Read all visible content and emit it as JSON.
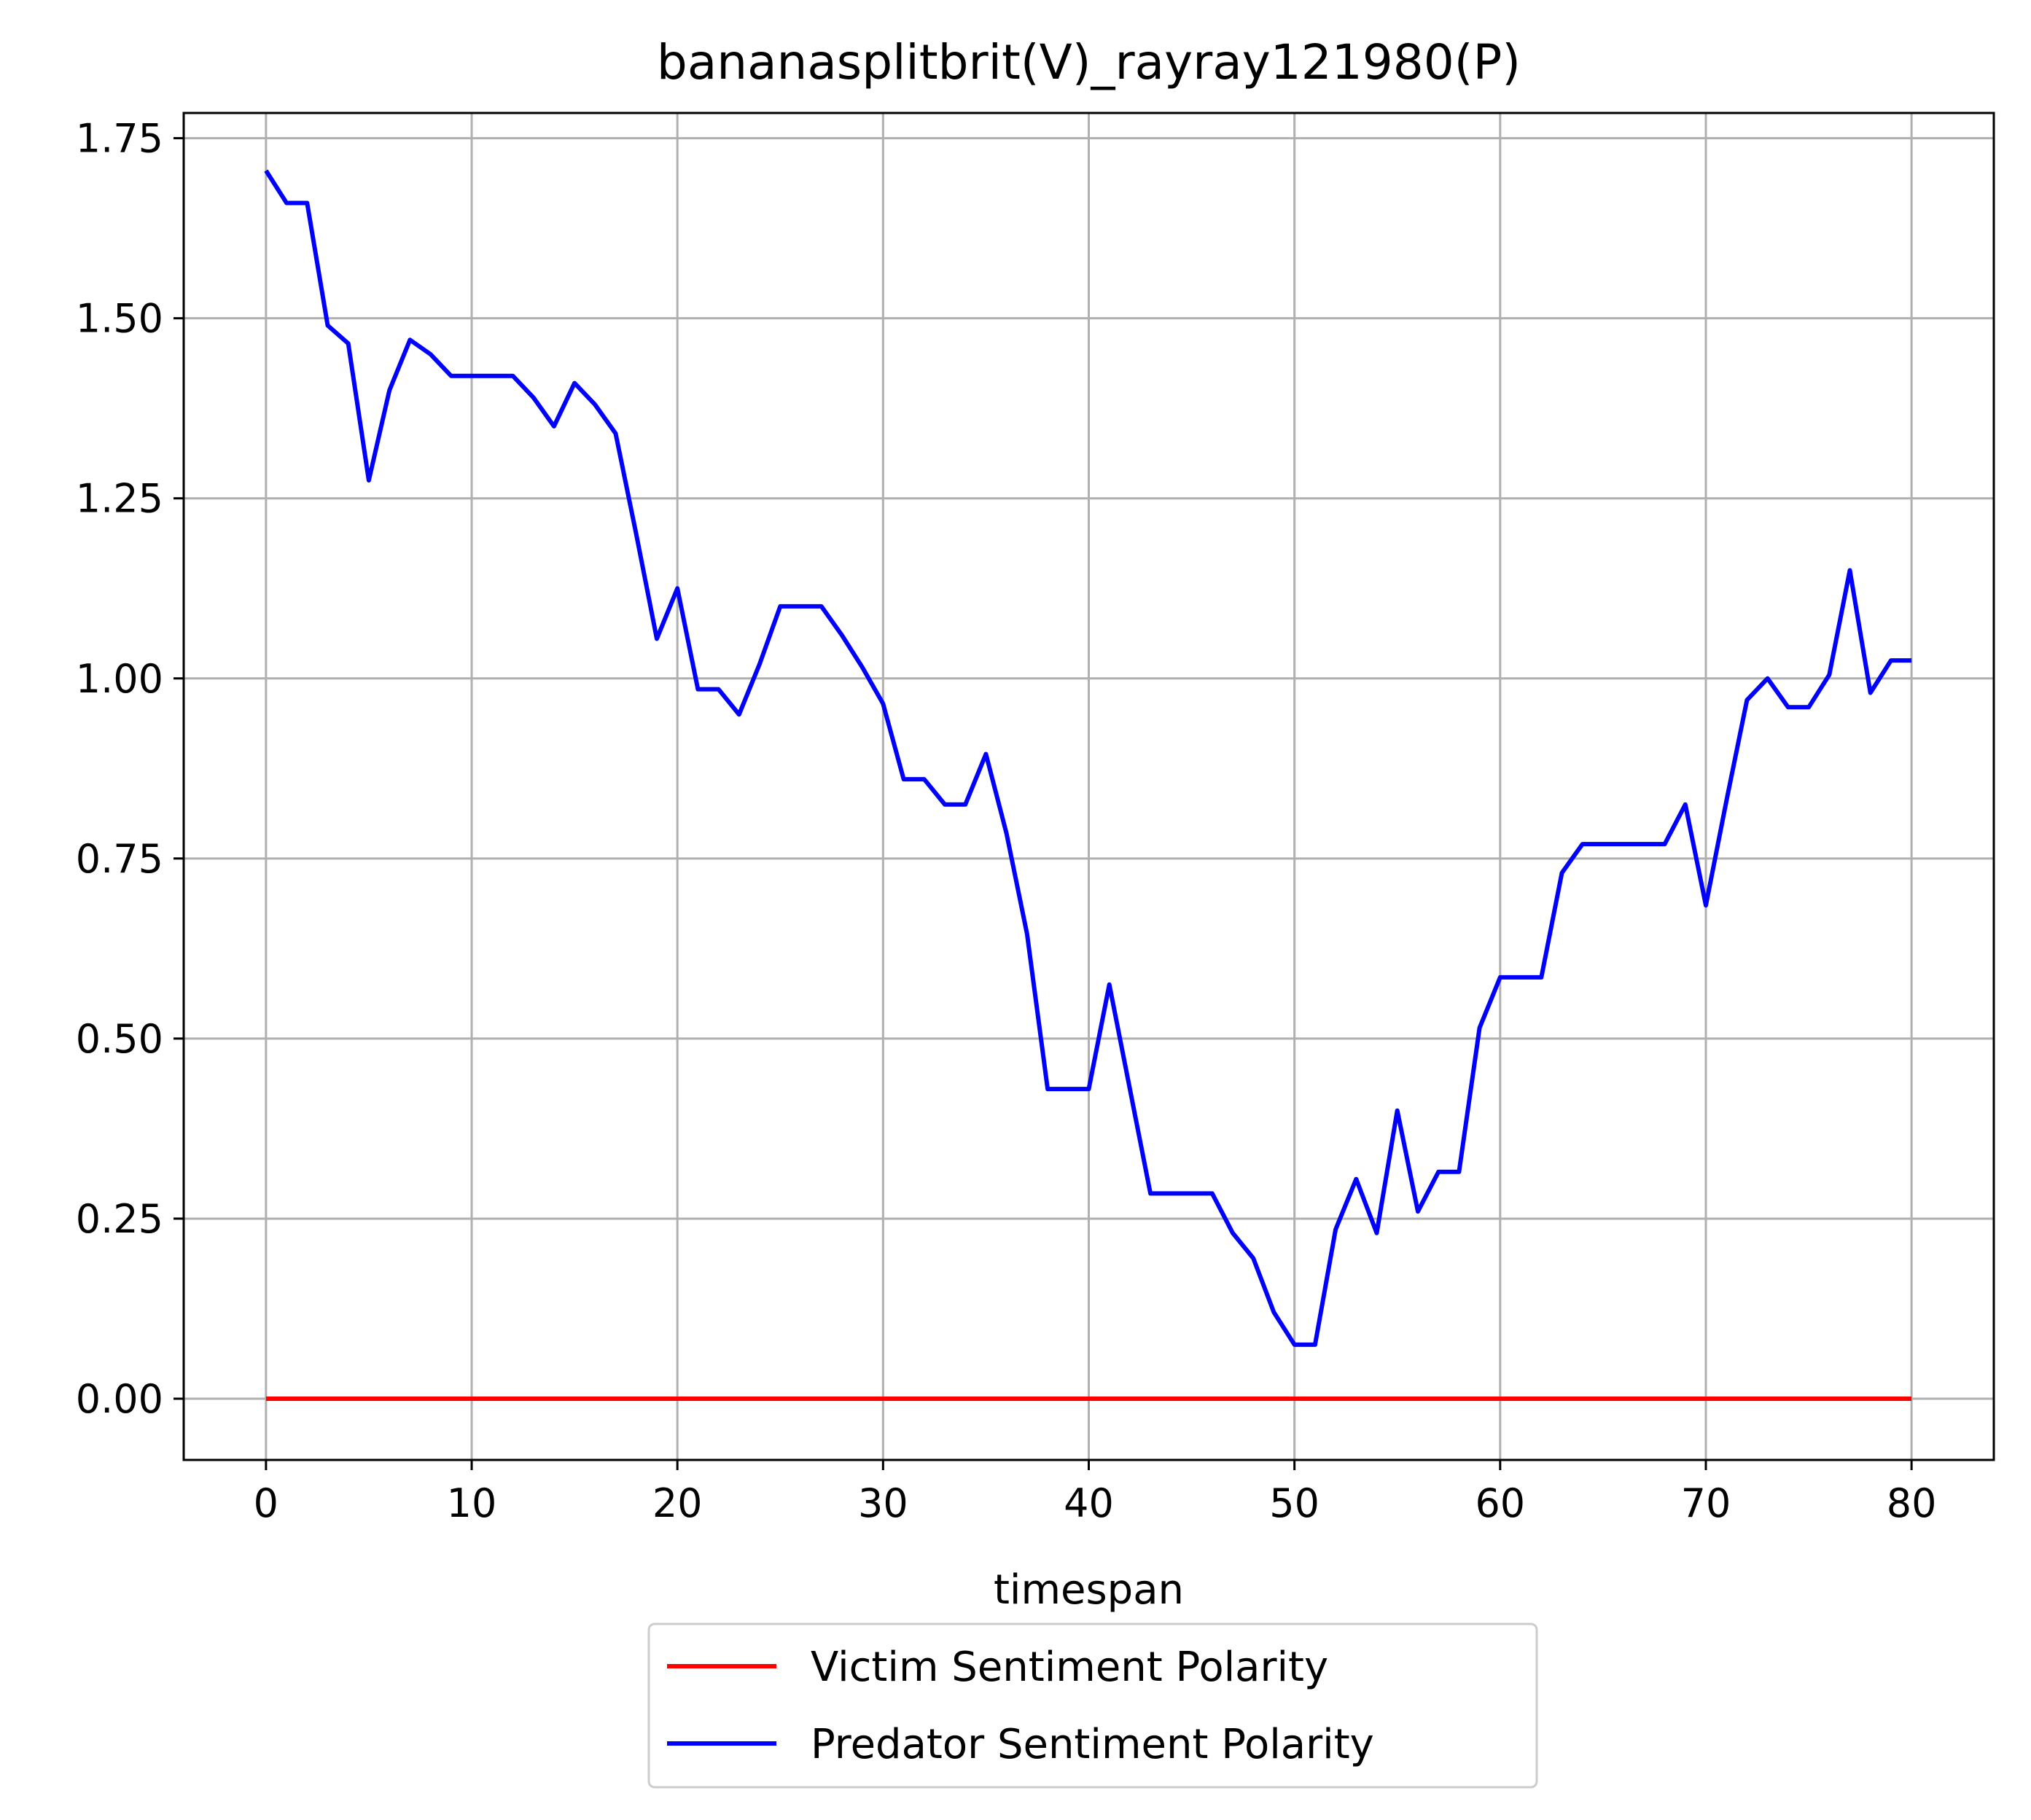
{
  "chart_data": {
    "type": "line",
    "title": "bananasplitbrit(V)_rayray121980(P)",
    "xlabel": "timespan",
    "ylabel": "",
    "xlim": [
      -4,
      84
    ],
    "ylim": [
      -0.085,
      1.785
    ],
    "xticks": [
      0,
      10,
      20,
      30,
      40,
      50,
      60,
      70,
      80
    ],
    "xtick_labels": [
      "0",
      "10",
      "20",
      "30",
      "40",
      "50",
      "60",
      "70",
      "80"
    ],
    "yticks": [
      0,
      0.25,
      0.5,
      0.75,
      1.0,
      1.25,
      1.5,
      1.75
    ],
    "ytick_labels": [
      "0.00",
      "0.25",
      "0.50",
      "0.75",
      "1.00",
      "1.25",
      "1.50",
      "1.75"
    ],
    "grid": true,
    "legend_position": "below-center",
    "series": [
      {
        "name": "Victim Sentiment Polarity",
        "color": "#ff0000",
        "x": [
          0,
          80
        ],
        "y": [
          0,
          0
        ]
      },
      {
        "name": "Predator Sentiment Polarity",
        "color": "#0000ff",
        "x": [
          0,
          1,
          2,
          3,
          4,
          5,
          6,
          7,
          8,
          9,
          10,
          11,
          12,
          13,
          14,
          15,
          16,
          17,
          18,
          19,
          20,
          21,
          22,
          23,
          24,
          25,
          26,
          27,
          28,
          29,
          30,
          31,
          32,
          33,
          34,
          35,
          36,
          37,
          38,
          39,
          40,
          41,
          42,
          43,
          44,
          45,
          46,
          47,
          48,
          49,
          50,
          51,
          52,
          53,
          54,
          55,
          56,
          57,
          58,
          59,
          60,
          61,
          62,
          63,
          64,
          65,
          66,
          67,
          68,
          69,
          70,
          71,
          72,
          73,
          74,
          75,
          76,
          77,
          78,
          79,
          80
        ],
        "y": [
          1.705,
          1.66,
          1.66,
          1.49,
          1.465,
          1.275,
          1.4,
          1.47,
          1.45,
          1.42,
          1.42,
          1.42,
          1.42,
          1.39,
          1.35,
          1.41,
          1.38,
          1.34,
          1.2,
          1.055,
          1.125,
          0.985,
          0.985,
          0.95,
          1.02,
          1.1,
          1.1,
          1.1,
          1.06,
          1.015,
          0.965,
          0.86,
          0.86,
          0.825,
          0.825,
          0.895,
          0.785,
          0.645,
          0.43,
          0.43,
          0.43,
          0.575,
          0.43,
          0.285,
          0.285,
          0.285,
          0.285,
          0.23,
          0.195,
          0.12,
          0.075,
          0.075,
          0.235,
          0.305,
          0.23,
          0.4,
          0.26,
          0.315,
          0.315,
          0.515,
          0.585,
          0.585,
          0.585,
          0.73,
          0.77,
          0.77,
          0.77,
          0.77,
          0.77,
          0.825,
          0.685,
          0.83,
          0.97,
          1.0,
          0.96,
          0.96,
          1.005,
          1.15,
          0.98,
          1.025,
          1.025
        ]
      }
    ]
  }
}
